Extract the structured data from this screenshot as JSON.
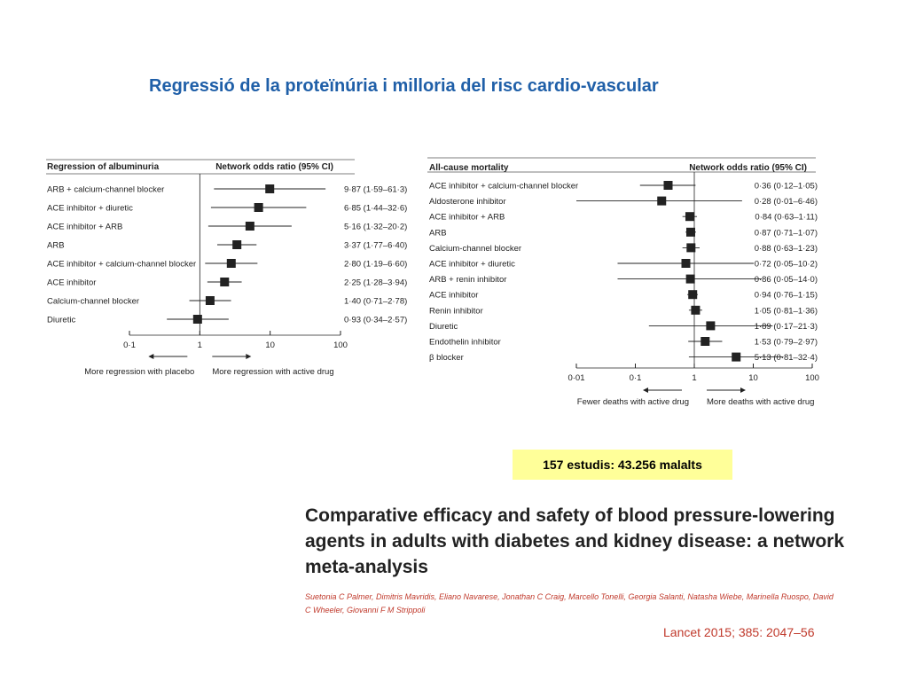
{
  "slide_title": "Regressió de la proteïnúria i milloria del risc cardio-vascular",
  "badge": "157 estudis: 43.256 malalts",
  "paper": {
    "title": "Comparative efficacy and safety of blood pressure-lowering agents in adults with diabetes and kidney disease: a network meta-analysis",
    "authors": "Suetonia C Palmer, Dimitris Mavridis, Eliano Navarese, Jonathan C Craig, Marcello Tonelli, Georgia Salanti, Natasha Wiebe, Marinella Ruospo, David C Wheeler, Giovanni F M Strippoli",
    "citation": "Lancet 2015; 385: 2047–56"
  },
  "chart_data": [
    {
      "type": "forest",
      "title": "Regression of albuminuria",
      "ylabel": "Network odds ratio (95% CI)",
      "xscale": "log",
      "xticks": [
        0.1,
        1,
        10,
        100
      ],
      "xtick_labels": [
        "0·1",
        "1",
        "10",
        "100"
      ],
      "left_label": "More regression with placebo",
      "right_label": "More regression with active drug",
      "rows": [
        {
          "label": "ARB + calcium-channel blocker",
          "or": 9.87,
          "lo": 1.59,
          "hi": 61.3,
          "ci": "9·87 (1·59–61·3)"
        },
        {
          "label": "ACE inhibitor + diuretic",
          "or": 6.85,
          "lo": 1.44,
          "hi": 32.6,
          "ci": "6·85 (1·44–32·6)"
        },
        {
          "label": "ACE inhibitor + ARB",
          "or": 5.16,
          "lo": 1.32,
          "hi": 20.2,
          "ci": "5·16 (1·32–20·2)"
        },
        {
          "label": "ARB",
          "or": 3.37,
          "lo": 1.77,
          "hi": 6.4,
          "ci": "3·37 (1·77–6·40)"
        },
        {
          "label": "ACE inhibitor + calcium-channel blocker",
          "or": 2.8,
          "lo": 1.19,
          "hi": 6.6,
          "ci": "2·80 (1·19–6·60)"
        },
        {
          "label": "ACE inhibitor",
          "or": 2.25,
          "lo": 1.28,
          "hi": 3.94,
          "ci": "2·25 (1·28–3·94)"
        },
        {
          "label": "Calcium-channel blocker",
          "or": 1.4,
          "lo": 0.71,
          "hi": 2.78,
          "ci": "1·40 (0·71–2·78)"
        },
        {
          "label": "Diuretic",
          "or": 0.93,
          "lo": 0.34,
          "hi": 2.57,
          "ci": "0·93 (0·34–2·57)"
        }
      ]
    },
    {
      "type": "forest",
      "title": "All-cause mortality",
      "ylabel": "Network odds ratio (95% CI)",
      "xscale": "log",
      "xticks": [
        0.01,
        0.1,
        1,
        10,
        100
      ],
      "xtick_labels": [
        "0·01",
        "0·1",
        "1",
        "10",
        "100"
      ],
      "left_label": "Fewer deaths with active drug",
      "right_label": "More deaths with active drug",
      "rows": [
        {
          "label": "ACE inhibitor + calcium-channel blocker",
          "or": 0.36,
          "lo": 0.12,
          "hi": 1.05,
          "ci": "0·36 (0·12–1·05)"
        },
        {
          "label": "Aldosterone inhibitor",
          "or": 0.28,
          "lo": 0.01,
          "hi": 6.46,
          "ci": "0·28 (0·01–6·46)"
        },
        {
          "label": "ACE inhibitor + ARB",
          "or": 0.84,
          "lo": 0.63,
          "hi": 1.11,
          "ci": "0·84 (0·63–1·11)"
        },
        {
          "label": "ARB",
          "or": 0.87,
          "lo": 0.71,
          "hi": 1.07,
          "ci": "0·87 (0·71–1·07)"
        },
        {
          "label": "Calcium-channel blocker",
          "or": 0.88,
          "lo": 0.63,
          "hi": 1.23,
          "ci": "0·88 (0·63–1·23)"
        },
        {
          "label": "ACE inhibitor + diuretic",
          "or": 0.72,
          "lo": 0.05,
          "hi": 10.2,
          "ci": "0·72 (0·05–10·2)"
        },
        {
          "label": "ARB + renin inhibitor",
          "or": 0.86,
          "lo": 0.05,
          "hi": 14.0,
          "ci": "0·86 (0·05–14·0)"
        },
        {
          "label": "ACE inhibitor",
          "or": 0.94,
          "lo": 0.76,
          "hi": 1.15,
          "ci": "0·94 (0·76–1·15)"
        },
        {
          "label": "Renin inhibitor",
          "or": 1.05,
          "lo": 0.81,
          "hi": 1.36,
          "ci": "1·05 (0·81–1·36)"
        },
        {
          "label": "Diuretic",
          "or": 1.89,
          "lo": 0.17,
          "hi": 21.3,
          "ci": "1·89 (0·17–21·3)"
        },
        {
          "label": "Endothelin inhibitor",
          "or": 1.53,
          "lo": 0.79,
          "hi": 2.97,
          "ci": "1·53 (0·79–2·97)"
        },
        {
          "label": "β blocker",
          "or": 5.13,
          "lo": 0.81,
          "hi": 32.4,
          "ci": "5·13 (0·81–32·4)"
        }
      ]
    }
  ]
}
